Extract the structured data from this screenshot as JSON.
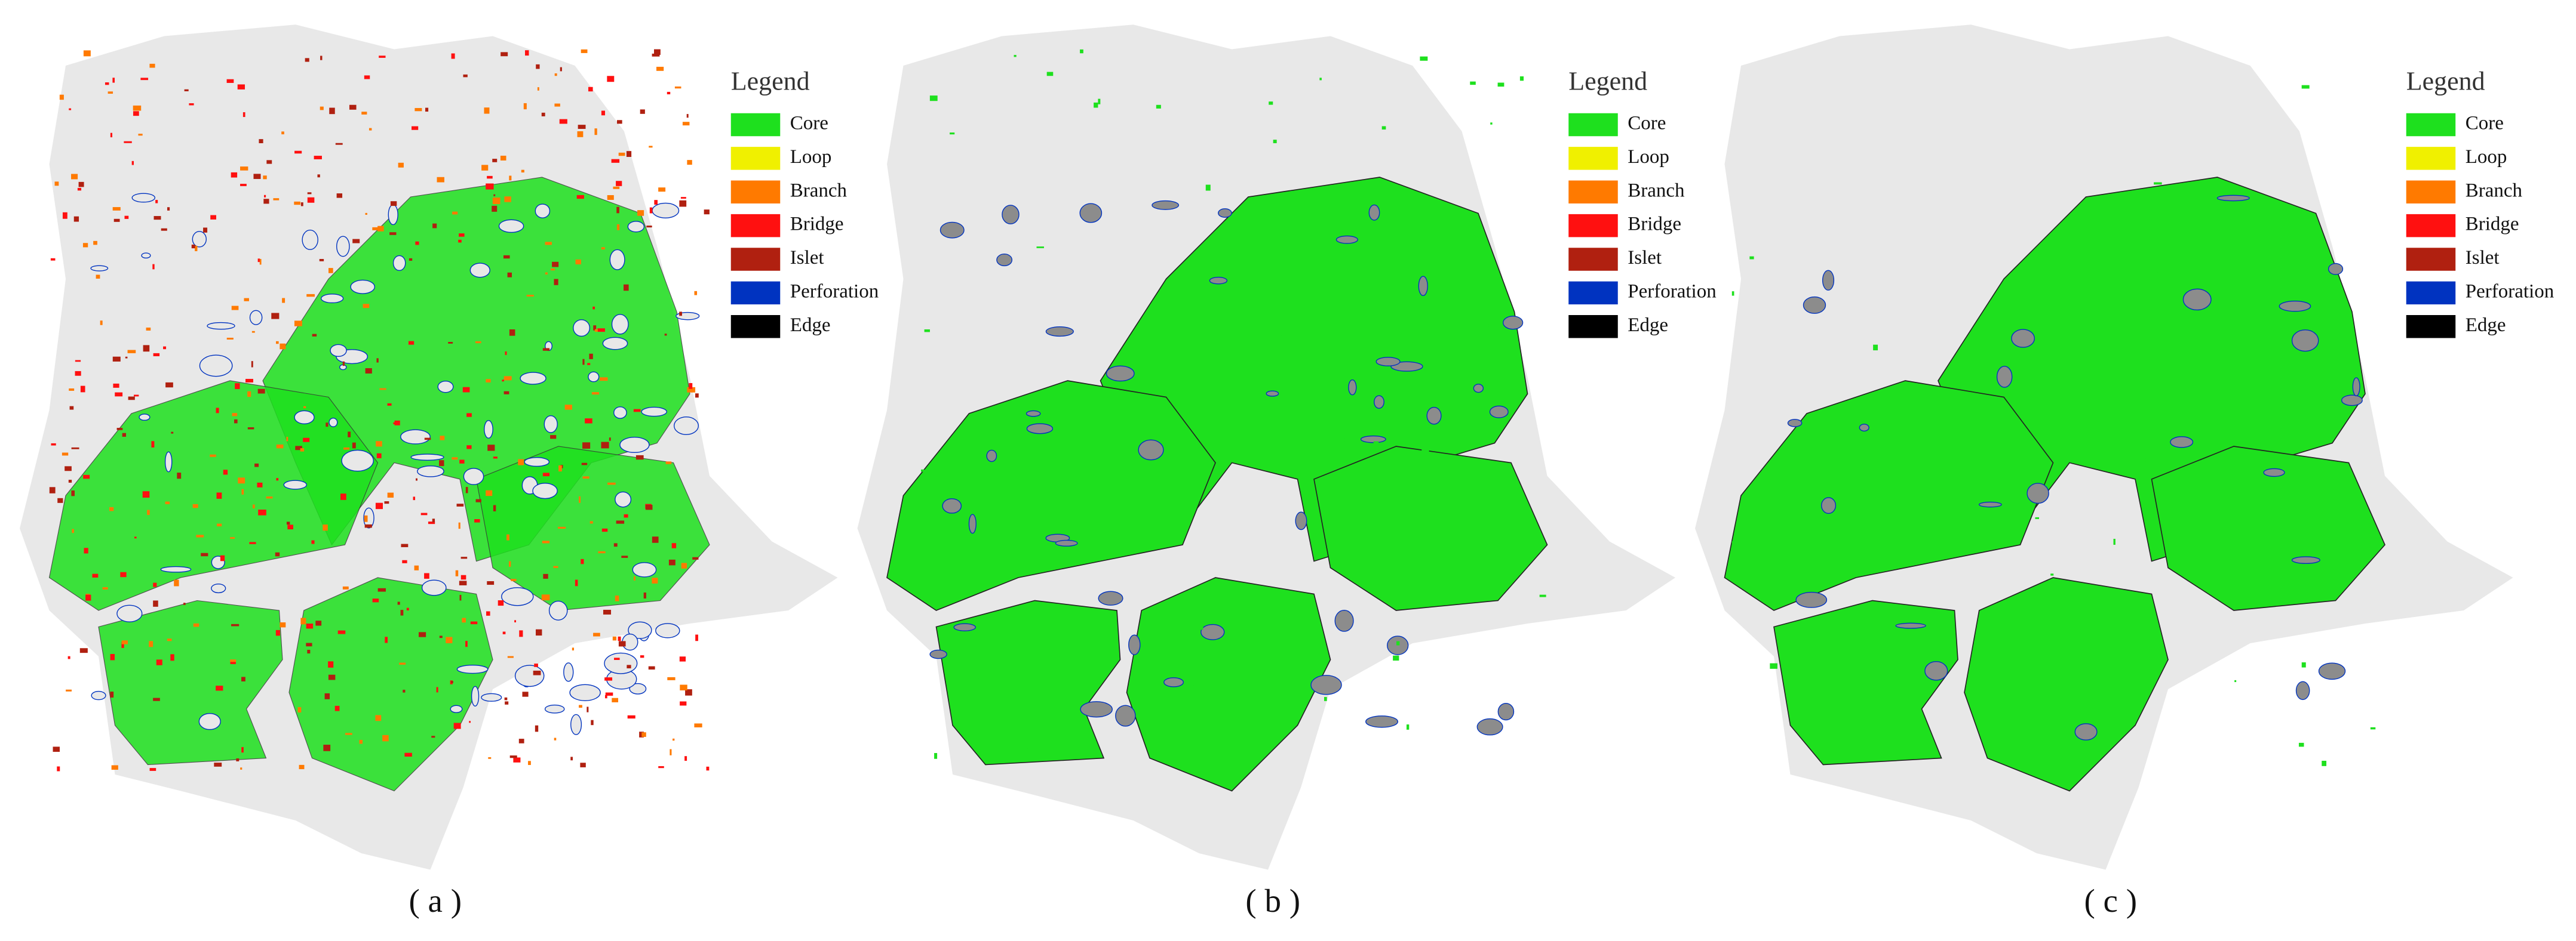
{
  "panels": [
    {
      "caption": "( a )",
      "legend": {
        "title": "Legend",
        "items": [
          {
            "label": "Core",
            "color": "#1ee01e"
          },
          {
            "label": "Loop",
            "color": "#f0f000"
          },
          {
            "label": "Branch",
            "color": "#ff7a00"
          },
          {
            "label": "Bridge",
            "color": "#ff1010"
          },
          {
            "label": "Islet",
            "color": "#b02010"
          },
          {
            "label": "Perforation",
            "color": "#0033c0"
          },
          {
            "label": "Edge",
            "color": "#000000"
          }
        ]
      }
    },
    {
      "caption": "( b )",
      "legend": {
        "title": "Legend",
        "items": [
          {
            "label": "Core",
            "color": "#1ee01e"
          },
          {
            "label": "Loop",
            "color": "#f0f000"
          },
          {
            "label": "Branch",
            "color": "#ff7a00"
          },
          {
            "label": "Bridge",
            "color": "#ff1010"
          },
          {
            "label": "Islet",
            "color": "#b02010"
          },
          {
            "label": "Perforation",
            "color": "#0033c0"
          },
          {
            "label": "Edge",
            "color": "#000000"
          }
        ]
      }
    },
    {
      "caption": "( c )",
      "legend": {
        "title": "Legend",
        "items": [
          {
            "label": "Core",
            "color": "#1ee01e"
          },
          {
            "label": "Loop",
            "color": "#f0f000"
          },
          {
            "label": "Branch",
            "color": "#ff7a00"
          },
          {
            "label": "Bridge",
            "color": "#ff1010"
          },
          {
            "label": "Islet",
            "color": "#b02010"
          },
          {
            "label": "Perforation",
            "color": "#0033c0"
          },
          {
            "label": "Edge",
            "color": "#000000"
          }
        ]
      }
    }
  ]
}
